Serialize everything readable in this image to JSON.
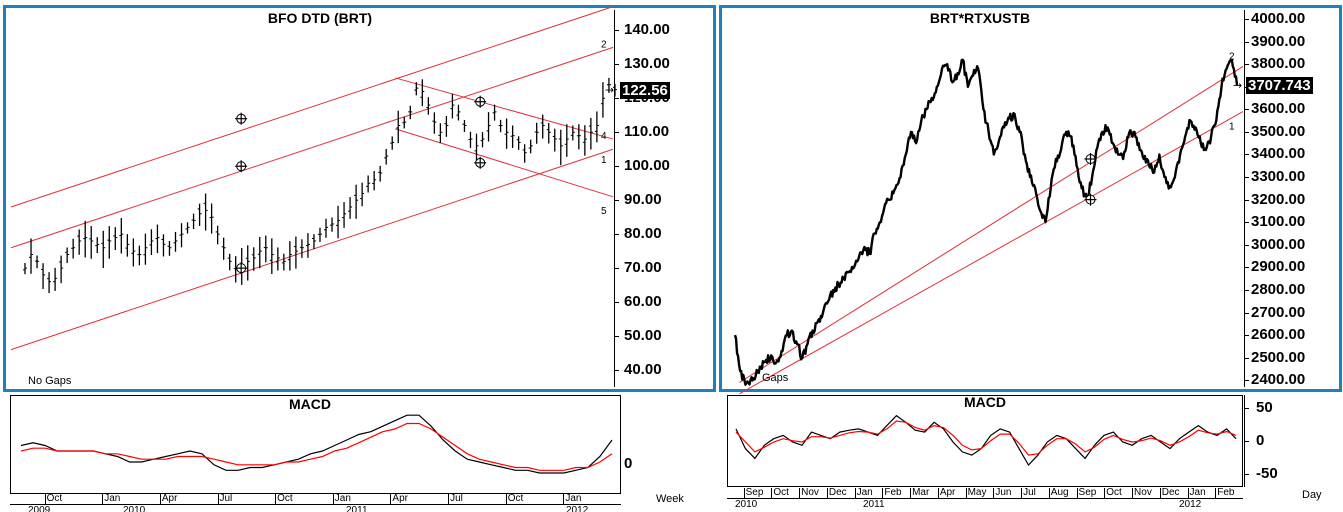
{
  "chart_data": [
    {
      "panel": "left-price",
      "type": "ohlc",
      "title": "BFO  DTD  (BRT)",
      "frequency": "Week",
      "ylim": [
        35,
        146
      ],
      "yticks": [
        "140.00",
        "130.00",
        "120.00",
        "110.00",
        "100.00",
        "90.00",
        "80.00",
        "70.00",
        "60.00",
        "50.00",
        "40.00"
      ],
      "last_price_label": "122.56",
      "note": "No Gaps",
      "channel_labels": [
        "2",
        "4",
        "1",
        "5"
      ],
      "x_start": "2009-08-01",
      "x_end": "2012-03-10",
      "weekly_close": [
        70,
        74,
        72,
        68,
        66,
        67,
        70,
        74,
        76,
        78,
        79,
        78,
        77,
        76,
        78,
        79,
        80,
        77,
        75,
        74,
        76,
        78,
        79,
        77,
        76,
        78,
        80,
        82,
        84,
        86,
        87,
        85,
        80,
        76,
        72,
        70,
        71,
        72,
        73,
        75,
        76,
        74,
        73,
        72,
        74,
        75,
        76,
        77,
        78,
        80,
        82,
        83,
        84,
        86,
        88,
        90,
        92,
        95,
        96,
        98,
        103,
        107,
        112,
        113,
        116,
        123,
        122,
        118,
        113,
        110,
        112,
        118,
        116,
        112,
        108,
        106,
        108,
        112,
        116,
        112,
        110,
        109,
        107,
        104,
        106,
        110,
        112,
        110,
        108,
        106,
        108,
        110,
        109,
        108,
        110,
        112,
        120,
        124,
        122.56
      ],
      "trend_channel_rising": {
        "start_date": "2009-08-01",
        "end_date": "2012-03-10",
        "upper": [
          88,
          147
        ],
        "middle": [
          76,
          135
        ],
        "lower": [
          46,
          105
        ]
      },
      "trend_channel_falling": {
        "start_date": "2011-04-01",
        "end_date": "2012-03-10",
        "upper": [
          126,
          108
        ],
        "lower": [
          111,
          91
        ]
      },
      "crosses": [
        {
          "date": "2010-07-31",
          "value": 114
        },
        {
          "date": "2010-07-31",
          "value": 100
        },
        {
          "date": "2010-07-31",
          "value": 70
        },
        {
          "date": "2011-08-13",
          "value": 119
        },
        {
          "date": "2011-08-13",
          "value": 101
        }
      ]
    },
    {
      "panel": "right-price",
      "type": "line",
      "title": "BRT*RTXUSTB",
      "frequency": "Day",
      "ylim": [
        2370,
        4040
      ],
      "yticks": [
        "4000.00",
        "3900.00",
        "3800.00",
        "3700.00",
        "3600.00",
        "3500.00",
        "3400.00",
        "3300.00",
        "3200.00",
        "3100.00",
        "3000.00",
        "2900.00",
        "2800.00",
        "2700.00",
        "2600.00",
        "2500.00",
        "2400.00"
      ],
      "last_price_label": "3707.743",
      "note": "Gaps",
      "channel_labels": [
        "2",
        "1"
      ],
      "x_start": "2010-08-01",
      "x_end": "2012-03-05",
      "values": [
        2600,
        2440,
        2380,
        2400,
        2420,
        2460,
        2490,
        2510,
        2480,
        2530,
        2600,
        2620,
        2560,
        2500,
        2560,
        2620,
        2660,
        2700,
        2750,
        2800,
        2820,
        2850,
        2880,
        2900,
        2950,
        2990,
        2960,
        3050,
        3100,
        3180,
        3200,
        3250,
        3300,
        3400,
        3500,
        3450,
        3550,
        3600,
        3650,
        3700,
        3780,
        3800,
        3720,
        3760,
        3820,
        3700,
        3750,
        3780,
        3600,
        3500,
        3400,
        3460,
        3520,
        3560,
        3580,
        3500,
        3400,
        3300,
        3250,
        3150,
        3100,
        3250,
        3380,
        3420,
        3500,
        3480,
        3350,
        3250,
        3200,
        3300,
        3430,
        3500,
        3520,
        3450,
        3400,
        3380,
        3480,
        3500,
        3450,
        3380,
        3350,
        3320,
        3400,
        3300,
        3260,
        3300,
        3400,
        3480,
        3550,
        3520,
        3450,
        3420,
        3480,
        3550,
        3700,
        3780,
        3820,
        3707.743
      ],
      "trend_channel": {
        "start_date": "2010-08-15",
        "end_date": "2012-03-05",
        "upper": [
          2390,
          3790
        ],
        "lower": [
          2340,
          3590
        ]
      },
      "crosses": [
        {
          "date": "2011-09-15",
          "value": 3380
        },
        {
          "date": "2011-09-15",
          "value": 3200
        }
      ]
    },
    {
      "panel": "left-macd",
      "type": "line",
      "title": "MACD",
      "zero_label": "0",
      "x_axis_label": "Week",
      "months": [
        "Oct",
        "Jan",
        "Apr",
        "Jul",
        "Oct",
        "Jan",
        "Apr",
        "Jul",
        "Oct",
        "Jan"
      ],
      "years": [
        "2009",
        "2010",
        "2011",
        "2012"
      ],
      "series": [
        {
          "color": "#000000",
          "values": [
            0.5,
            0.6,
            0.5,
            0.3,
            0.3,
            0.3,
            0.3,
            0.2,
            0.1,
            -0.1,
            -0.1,
            0.0,
            0.1,
            0.2,
            0.3,
            0.2,
            -0.2,
            -0.4,
            -0.4,
            -0.3,
            -0.3,
            -0.2,
            -0.1,
            0.0,
            0.2,
            0.3,
            0.5,
            0.7,
            0.9,
            1.0,
            1.2,
            1.4,
            1.6,
            1.6,
            1.2,
            0.7,
            0.3,
            0.0,
            -0.1,
            -0.2,
            -0.3,
            -0.4,
            -0.4,
            -0.5,
            -0.5,
            -0.5,
            -0.4,
            -0.3,
            0.1,
            0.7
          ]
        },
        {
          "color": "#ff0000",
          "values": [
            0.3,
            0.4,
            0.4,
            0.3,
            0.3,
            0.3,
            0.3,
            0.2,
            0.2,
            0.1,
            0.0,
            0.0,
            0.0,
            0.1,
            0.1,
            0.1,
            0.0,
            -0.1,
            -0.2,
            -0.2,
            -0.2,
            -0.2,
            -0.1,
            -0.1,
            0.0,
            0.1,
            0.3,
            0.4,
            0.6,
            0.8,
            1.0,
            1.1,
            1.3,
            1.3,
            1.1,
            0.8,
            0.5,
            0.2,
            0.0,
            -0.1,
            -0.2,
            -0.3,
            -0.3,
            -0.4,
            -0.4,
            -0.4,
            -0.3,
            -0.3,
            -0.1,
            0.2
          ]
        }
      ]
    },
    {
      "panel": "right-macd",
      "type": "line",
      "title": "MACD",
      "ylim": [
        -70,
        70
      ],
      "yticks": [
        "50",
        "0",
        "-50"
      ],
      "x_axis_label": "Day",
      "months": [
        "Sep",
        "Oct",
        "Nov",
        "Dec",
        "Jan",
        "Feb",
        "Mar",
        "Apr",
        "May",
        "Jun",
        "Jul",
        "Aug",
        "Sep",
        "Oct",
        "Nov",
        "Dec",
        "Jan",
        "Feb"
      ],
      "years": [
        "2010",
        "2011",
        "2012"
      ],
      "series": [
        {
          "color": "#000000",
          "values": [
            20,
            -10,
            -25,
            -5,
            5,
            10,
            0,
            -5,
            15,
            10,
            5,
            15,
            18,
            20,
            15,
            10,
            25,
            40,
            30,
            18,
            15,
            30,
            20,
            0,
            -15,
            -20,
            -10,
            10,
            20,
            15,
            -10,
            -35,
            -20,
            0,
            10,
            5,
            -10,
            -25,
            -5,
            10,
            15,
            0,
            -5,
            5,
            10,
            0,
            -10,
            5,
            15,
            25,
            15,
            10,
            20,
            5
          ]
        },
        {
          "color": "#ff0000",
          "values": [
            15,
            0,
            -15,
            -8,
            0,
            5,
            2,
            0,
            8,
            8,
            6,
            10,
            14,
            16,
            15,
            12,
            20,
            32,
            30,
            22,
            18,
            25,
            22,
            10,
            -5,
            -12,
            -10,
            2,
            12,
            12,
            -2,
            -20,
            -18,
            -5,
            5,
            5,
            -3,
            -15,
            -8,
            4,
            10,
            4,
            0,
            2,
            6,
            2,
            -5,
            0,
            8,
            18,
            14,
            12,
            16,
            10
          ]
        }
      ]
    }
  ]
}
